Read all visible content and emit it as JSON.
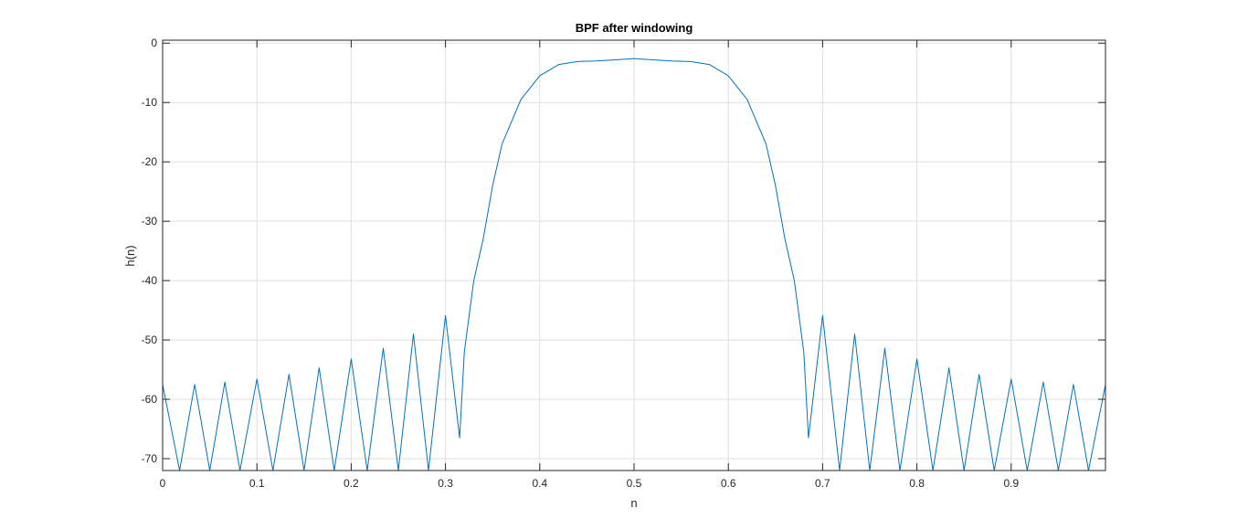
{
  "chart_data": {
    "type": "line",
    "title": "BPF after windowing",
    "xlabel": "n",
    "ylabel": "h(n)",
    "xlim": [
      0,
      1
    ],
    "ylim": [
      -72,
      0.5
    ],
    "x_ticks": [
      0,
      0.1,
      0.2,
      0.3,
      0.4,
      0.5,
      0.6,
      0.7,
      0.8,
      0.9
    ],
    "x_tick_labels": [
      "0",
      "0.1",
      "0.2",
      "0.3",
      "0.4",
      "0.5",
      "0.6",
      "0.7",
      "0.8",
      "0.9"
    ],
    "y_ticks": [
      0,
      -10,
      -20,
      -30,
      -40,
      -50,
      -60,
      -70
    ],
    "y_tick_labels": [
      "0",
      "-10",
      "-20",
      "-30",
      "-40",
      "-50",
      "-60",
      "-70"
    ],
    "grid": true,
    "line_color": "#0072bd",
    "series": [
      {
        "x": [
          0,
          0.018,
          0.034,
          0.05,
          0.066,
          0.082,
          0.1,
          0.117,
          0.134,
          0.15,
          0.166,
          0.182,
          0.2,
          0.217,
          0.234,
          0.25,
          0.266,
          0.282,
          0.3,
          0.315,
          0.32,
          0.33,
          0.34,
          0.35,
          0.36,
          0.38,
          0.4,
          0.42,
          0.44,
          0.46,
          0.48,
          0.5,
          0.52,
          0.54,
          0.56,
          0.58,
          0.6,
          0.62,
          0.64,
          0.65,
          0.66,
          0.67,
          0.68,
          0.685,
          0.7,
          0.718,
          0.734,
          0.75,
          0.766,
          0.782,
          0.8,
          0.817,
          0.834,
          0.85,
          0.866,
          0.882,
          0.9,
          0.917,
          0.934,
          0.95,
          0.966,
          0.982,
          1.0
        ],
        "y": [
          -57.5,
          -72,
          -57.5,
          -72,
          -57.1,
          -72,
          -56.6,
          -72,
          -55.8,
          -72,
          -54.7,
          -72,
          -53.2,
          -72,
          -51.4,
          -72,
          -49,
          -72,
          -45.9,
          -66.5,
          -52,
          -40,
          -33,
          -24,
          -17,
          -9.5,
          -5.5,
          -3.6,
          -3.1,
          -3.0,
          -2.8,
          -2.6,
          -2.8,
          -3.0,
          -3.1,
          -3.6,
          -5.5,
          -9.5,
          -17,
          -24,
          -33,
          -40,
          -52,
          -66.5,
          -45.9,
          -72,
          -49,
          -72,
          -51.4,
          -72,
          -53.2,
          -72,
          -54.7,
          -72,
          -55.8,
          -72,
          -56.6,
          -72,
          -57.1,
          -72,
          -57.5,
          -72,
          -57.5
        ]
      }
    ]
  }
}
